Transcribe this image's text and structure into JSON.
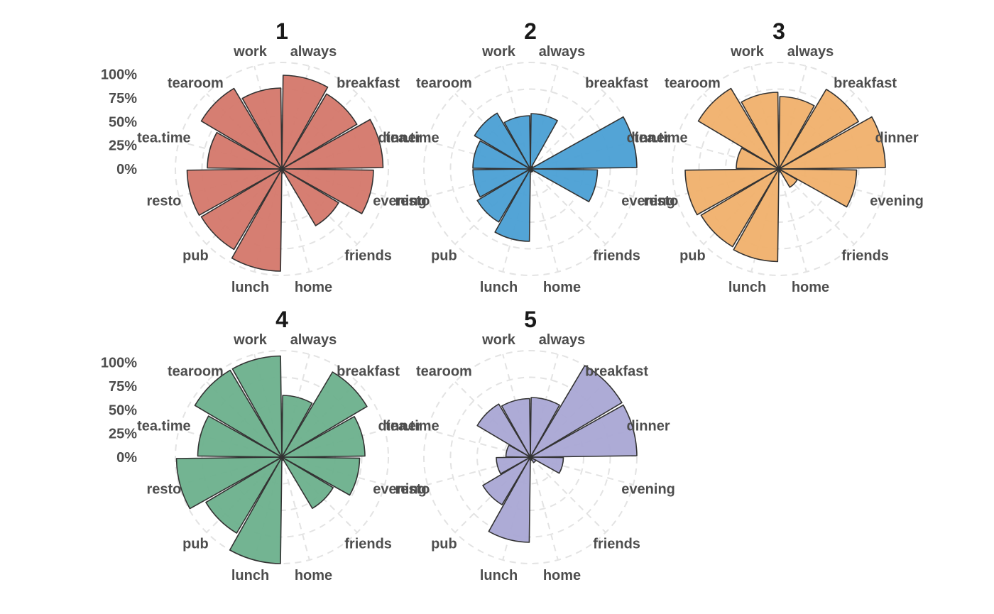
{
  "chart_data": {
    "type": "polar-bar",
    "categories": [
      "always",
      "breakfast",
      "dinner",
      "evening",
      "friends",
      "home",
      "lunch",
      "pub",
      "resto",
      "tea.time",
      "tearoom",
      "work"
    ],
    "radial_ticks": [
      "0%",
      "25%",
      "50%",
      "75%",
      "100%"
    ],
    "rlim": [
      0,
      100
    ],
    "grid": true,
    "panels": [
      {
        "title": "1",
        "color": "#D4776A",
        "values": [
          88,
          82,
          95,
          86,
          62,
          4,
          96,
          88,
          89,
          70,
          88,
          76
        ]
      },
      {
        "title": "2",
        "color": "#4A9FD4",
        "values": [
          52,
          3,
          100,
          63,
          3,
          3,
          68,
          58,
          54,
          54,
          61,
          50
        ]
      },
      {
        "title": "3",
        "color": "#F0B06B",
        "values": [
          68,
          87,
          100,
          73,
          20,
          3,
          87,
          85,
          88,
          40,
          88,
          72
        ]
      },
      {
        "title": "4",
        "color": "#6BB08C",
        "values": [
          58,
          93,
          78,
          73,
          56,
          3,
          100,
          83,
          99,
          79,
          95,
          95
        ]
      },
      {
        "title": "5",
        "color": "#A9A6D4",
        "values": [
          56,
          100,
          100,
          31,
          6,
          3,
          80,
          52,
          32,
          23,
          58,
          55
        ]
      }
    ]
  }
}
